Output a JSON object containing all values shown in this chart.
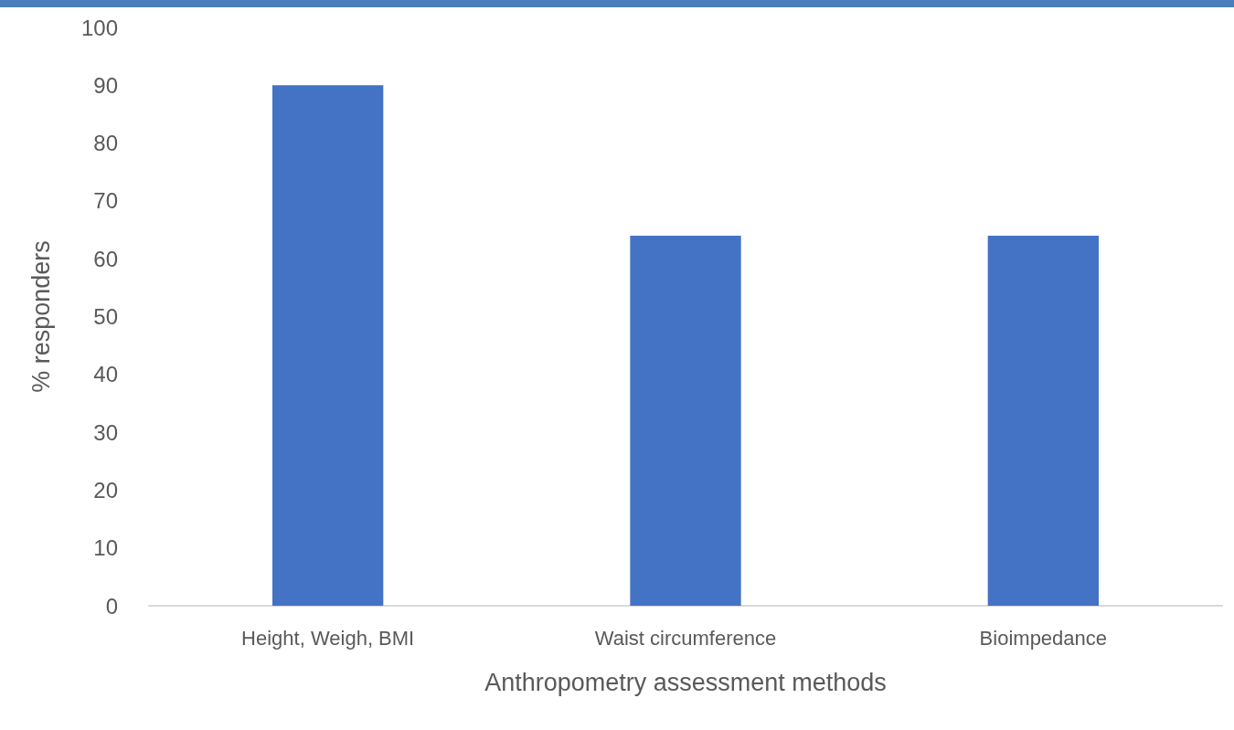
{
  "chart_data": {
    "type": "bar",
    "xlabel": "Anthropometry assessment methods",
    "ylabel": "% responders",
    "categories": [
      "Height, Weigh, BMI",
      "Waist circumference",
      "Bioimpedance"
    ],
    "values": [
      90,
      64,
      64
    ],
    "color": "#4472c4",
    "ylim": [
      0,
      100
    ],
    "yticks": [
      0,
      10,
      20,
      30,
      40,
      50,
      60,
      70,
      80,
      90,
      100
    ],
    "grid": false
  }
}
